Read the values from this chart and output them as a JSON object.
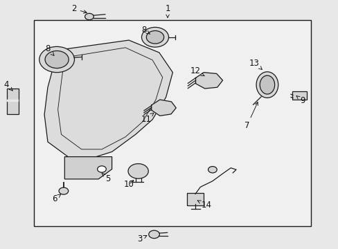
{
  "bg_color": "#e8e8e8",
  "box_facecolor": "#f0f0f0",
  "line_color": "#1a1a1a",
  "label_color": "#111111",
  "font_size": 8.5,
  "figsize": [
    4.89,
    3.6
  ],
  "dpi": 100
}
